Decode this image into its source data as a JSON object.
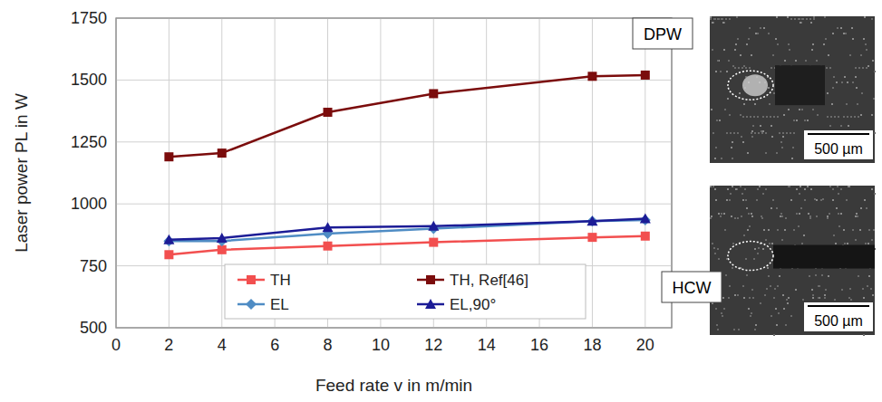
{
  "chart_data": {
    "type": "line",
    "x_label": "Feed rate v in m/min",
    "y_label": "Laser power PL in W",
    "x": [
      2,
      4,
      8,
      12,
      18,
      20
    ],
    "xlim": [
      0,
      21
    ],
    "xticks": [
      0,
      2,
      4,
      6,
      8,
      10,
      12,
      14,
      16,
      18,
      20
    ],
    "ylim": [
      500,
      1750
    ],
    "yticks": [
      500,
      750,
      1000,
      1250,
      1500,
      1750
    ],
    "grid": true,
    "legend": "bottom",
    "series": [
      {
        "name": "TH",
        "color": "#f24f4f",
        "marker": "square",
        "values": [
          795,
          815,
          830,
          845,
          865,
          870
        ]
      },
      {
        "name": "TH, Ref[46]",
        "color": "#7b0c0c",
        "marker": "square",
        "values": [
          1190,
          1205,
          1370,
          1445,
          1515,
          1520
        ]
      },
      {
        "name": "EL",
        "color": "#4f8cc4",
        "marker": "diamond",
        "values": [
          850,
          850,
          880,
          900,
          930,
          935
        ]
      },
      {
        "name": "EL,90°",
        "color": "#1c1c96",
        "marker": "triangle",
        "values": [
          855,
          862,
          905,
          910,
          930,
          940
        ]
      }
    ],
    "annotations": [
      {
        "text": "DPW",
        "scale": "500 µm"
      },
      {
        "text": "HCW",
        "scale": "500 µm"
      }
    ]
  }
}
